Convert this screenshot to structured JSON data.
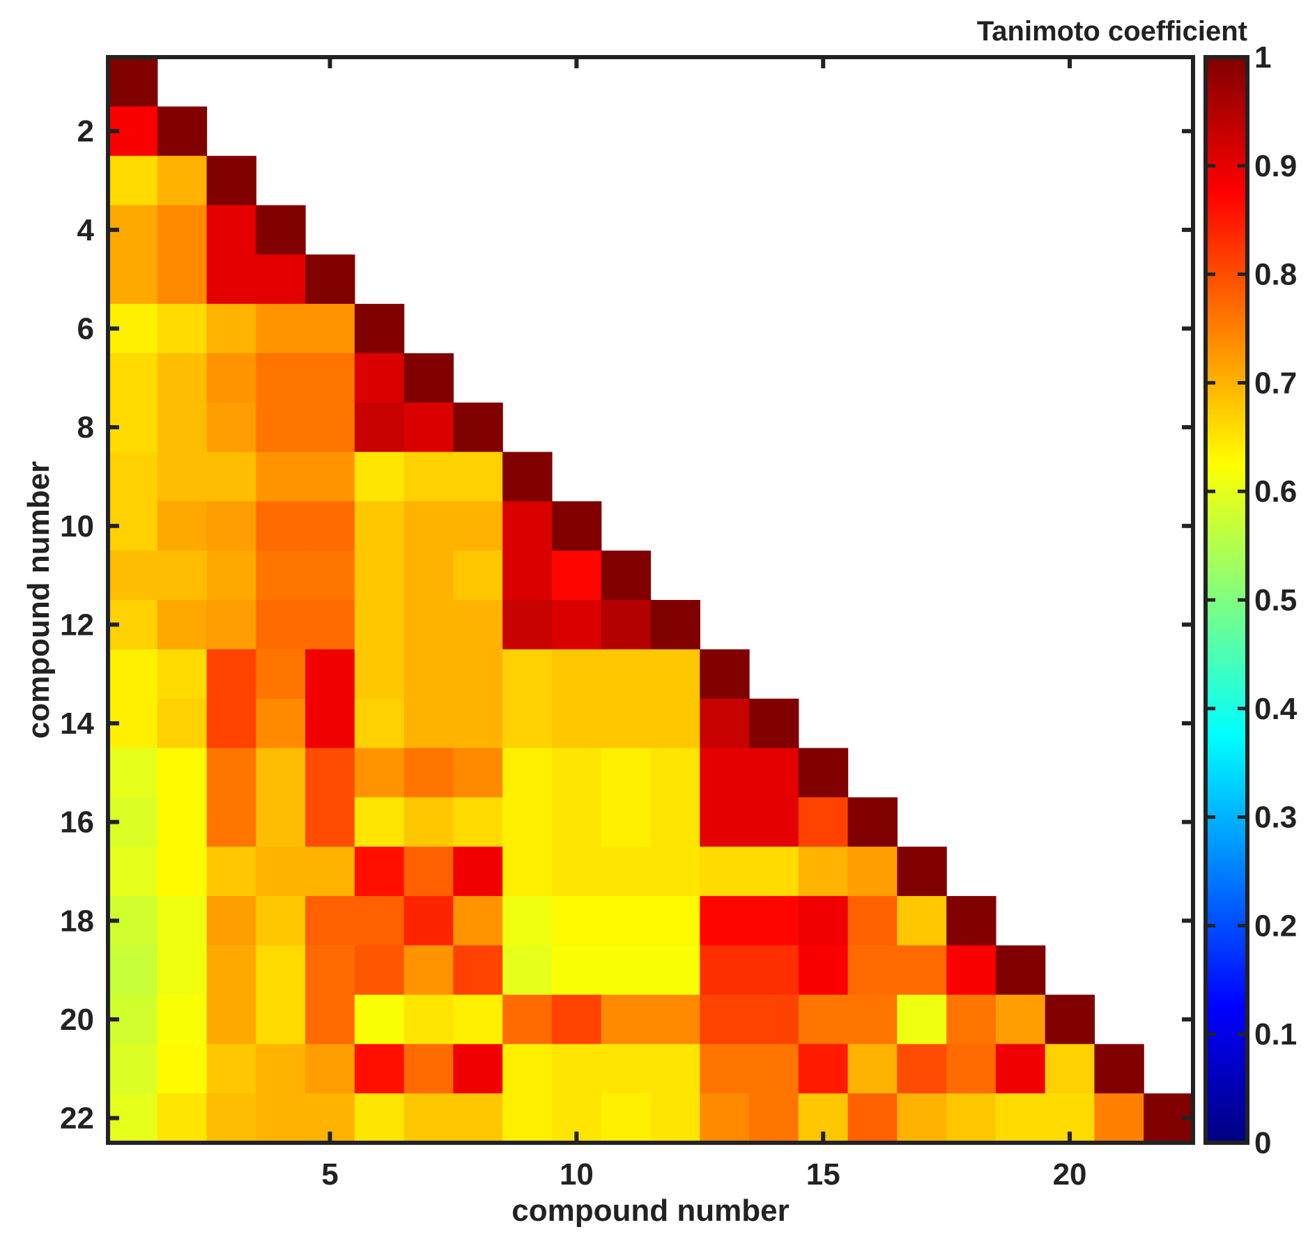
{
  "chart_data": {
    "type": "heatmap",
    "colorbar_title": "Tanimoto coefficient",
    "xlabel": "compound number",
    "ylabel": "compound number",
    "n": 22,
    "x_ticks": [
      5,
      10,
      15,
      20
    ],
    "y_ticks": [
      2,
      4,
      6,
      8,
      10,
      12,
      14,
      16,
      18,
      20,
      22
    ],
    "colorbar_ticks": [
      "0",
      "0.1",
      "0.2",
      "0.3",
      "0.4",
      "0.5",
      "0.6",
      "0.7",
      "0.8",
      "0.9",
      "1"
    ],
    "clim": [
      0,
      1
    ],
    "colormap": "jet",
    "grid": false,
    "matrix_lower_triangle": [
      [
        1.0
      ],
      [
        0.88,
        1.0
      ],
      [
        0.66,
        0.7,
        1.0
      ],
      [
        0.71,
        0.74,
        0.9,
        1.0
      ],
      [
        0.71,
        0.74,
        0.9,
        0.9,
        1.0
      ],
      [
        0.64,
        0.66,
        0.7,
        0.73,
        0.73,
        1.0
      ],
      [
        0.66,
        0.69,
        0.73,
        0.76,
        0.76,
        0.91,
        1.0
      ],
      [
        0.66,
        0.69,
        0.72,
        0.76,
        0.76,
        0.93,
        0.91,
        1.0
      ],
      [
        0.67,
        0.69,
        0.69,
        0.73,
        0.73,
        0.65,
        0.67,
        0.67,
        1.0
      ],
      [
        0.67,
        0.71,
        0.72,
        0.77,
        0.77,
        0.68,
        0.7,
        0.7,
        0.91,
        1.0
      ],
      [
        0.69,
        0.69,
        0.71,
        0.76,
        0.76,
        0.68,
        0.7,
        0.68,
        0.91,
        0.87,
        1.0
      ],
      [
        0.67,
        0.71,
        0.72,
        0.77,
        0.77,
        0.68,
        0.7,
        0.7,
        0.93,
        0.91,
        0.95,
        1.0
      ],
      [
        0.64,
        0.66,
        0.81,
        0.76,
        0.89,
        0.68,
        0.7,
        0.7,
        0.67,
        0.68,
        0.68,
        0.68,
        1.0
      ],
      [
        0.64,
        0.67,
        0.81,
        0.74,
        0.89,
        0.67,
        0.7,
        0.7,
        0.67,
        0.68,
        0.68,
        0.68,
        0.93,
        1.0
      ],
      [
        0.6,
        0.63,
        0.76,
        0.69,
        0.8,
        0.73,
        0.76,
        0.74,
        0.64,
        0.65,
        0.64,
        0.65,
        0.9,
        0.9,
        1.0
      ],
      [
        0.59,
        0.63,
        0.76,
        0.69,
        0.8,
        0.65,
        0.68,
        0.66,
        0.64,
        0.65,
        0.64,
        0.65,
        0.9,
        0.9,
        0.81,
        1.0
      ],
      [
        0.6,
        0.63,
        0.68,
        0.7,
        0.7,
        0.86,
        0.78,
        0.89,
        0.64,
        0.65,
        0.65,
        0.65,
        0.66,
        0.66,
        0.7,
        0.72,
        1.0
      ],
      [
        0.58,
        0.61,
        0.72,
        0.68,
        0.78,
        0.78,
        0.84,
        0.73,
        0.61,
        0.63,
        0.63,
        0.63,
        0.87,
        0.87,
        0.89,
        0.78,
        0.68,
        1.0
      ],
      [
        0.57,
        0.61,
        0.71,
        0.66,
        0.77,
        0.79,
        0.73,
        0.81,
        0.6,
        0.62,
        0.62,
        0.62,
        0.83,
        0.83,
        0.88,
        0.77,
        0.77,
        0.88,
        1.0
      ],
      [
        0.58,
        0.62,
        0.71,
        0.66,
        0.77,
        0.62,
        0.65,
        0.64,
        0.77,
        0.81,
        0.74,
        0.74,
        0.81,
        0.81,
        0.76,
        0.76,
        0.61,
        0.76,
        0.72,
        1.0
      ],
      [
        0.59,
        0.63,
        0.68,
        0.7,
        0.72,
        0.86,
        0.77,
        0.89,
        0.64,
        0.65,
        0.65,
        0.65,
        0.76,
        0.76,
        0.85,
        0.7,
        0.8,
        0.77,
        0.89,
        0.67,
        1.0
      ],
      [
        0.6,
        0.65,
        0.69,
        0.7,
        0.7,
        0.65,
        0.68,
        0.68,
        0.64,
        0.65,
        0.64,
        0.65,
        0.74,
        0.76,
        0.68,
        0.78,
        0.7,
        0.68,
        0.66,
        0.66,
        0.75,
        1.0
      ]
    ]
  }
}
